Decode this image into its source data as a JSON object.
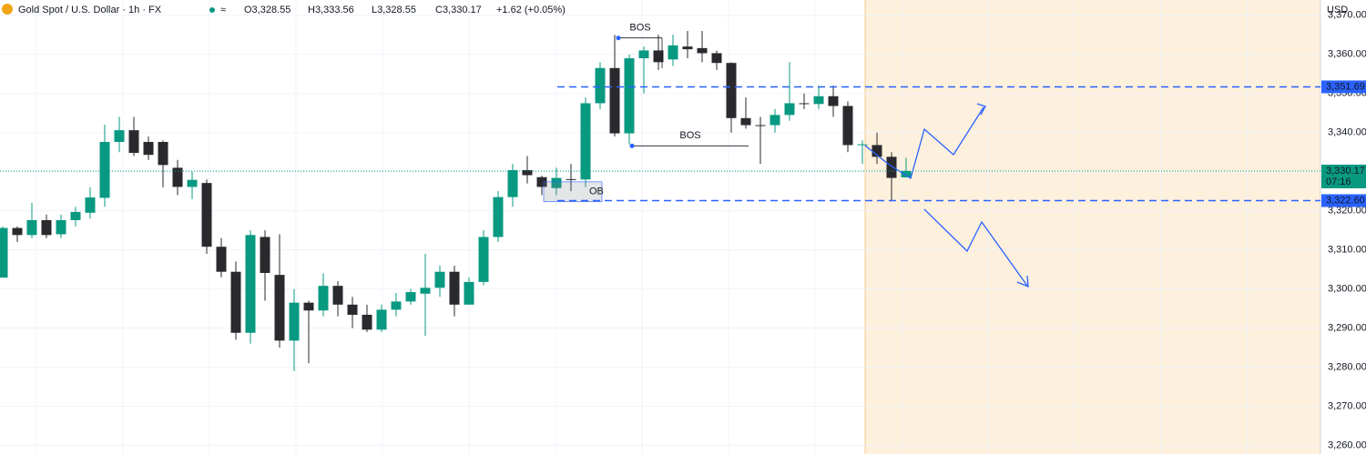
{
  "chart_data": {
    "type": "candlestick",
    "title": "Gold Spot / U.S. Dollar · 1h · FX",
    "ohlc_labels": [
      "O3,328.55",
      "H3,333.56",
      "L3,328.55",
      "C3,330.17"
    ],
    "change_label": "+1.62 (+0.05%)",
    "currency": "USD",
    "up_color": "#089981",
    "down_color": "#2a2a2e",
    "ylim": [
      3257.8,
      3373.9
    ],
    "yticks": [
      {
        "value": 3260,
        "label": "3,260.00"
      },
      {
        "value": 3270,
        "label": "3,270.00"
      },
      {
        "value": 3280,
        "label": "3,280.00"
      },
      {
        "value": 3290,
        "label": "3,290.00"
      },
      {
        "value": 3300,
        "label": "3,300.00"
      },
      {
        "value": 3310,
        "label": "3,310.00"
      },
      {
        "value": 3320,
        "label": "3,320.00"
      },
      {
        "value": 3330,
        "label": "3,330.00"
      },
      {
        "value": 3340,
        "label": "3,340.00"
      },
      {
        "value": 3350,
        "label": "3,350.00"
      },
      {
        "value": 3360,
        "label": "3,360.00"
      },
      {
        "value": 3370,
        "label": "3,370.00"
      }
    ],
    "series": [
      {
        "name": "open",
        "values": [
          3302.9,
          3315.6,
          3313.8,
          3317.6,
          3314,
          3317.6,
          3319.5,
          3323.3,
          3337.6,
          3340.6,
          3337.6,
          3337.6,
          3331,
          3326.1,
          3327.1,
          3310.8,
          3304.4,
          3288.8,
          3313.3,
          3303.6,
          3286.8,
          3296.5,
          3294.5,
          3300.8,
          3296,
          3293.4,
          3289.6,
          3294.7,
          3296.8,
          3298.8,
          3300.3,
          3304.4,
          3296,
          3301.8,
          3313.3,
          3323.5,
          3330.4,
          3328.6,
          3325.8,
          3328.1,
          3328,
          3347.5,
          3356.5,
          3339.8,
          3359,
          3361,
          3358.7,
          3362,
          3361.6,
          3360.3,
          3357.8,
          3343.7,
          3341.9,
          3341.9,
          3344.5,
          3347.5,
          3347.3,
          3349.3,
          3346.8,
          3336.8,
          3336.8,
          3333.8,
          3328.55
        ]
      },
      {
        "name": "high",
        "values": [
          3316,
          3316,
          3322,
          3319,
          3319,
          3321,
          3326,
          3342,
          3344,
          3344,
          3339,
          3338,
          3333,
          3330,
          3328,
          3313,
          3307,
          3315,
          3315,
          3314,
          3300,
          3297,
          3304,
          3302,
          3298,
          3296,
          3296,
          3299,
          3300,
          3309,
          3306,
          3306,
          3303,
          3315,
          3325,
          3332,
          3334,
          3329,
          3331,
          3332,
          3349,
          3358,
          3365,
          3360,
          3362,
          3365,
          3365,
          3366,
          3366,
          3361,
          3358,
          3349,
          3344,
          3346,
          3358,
          3350,
          3352,
          3352,
          3348,
          3338,
          3340,
          3335,
          3333.56
        ]
      },
      {
        "name": "low",
        "values": [
          3303,
          3312,
          3313,
          3313,
          3313,
          3316,
          3318,
          3321,
          3335,
          3334,
          3333,
          3326,
          3324,
          3323,
          3309,
          3303,
          3287,
          3286,
          3297,
          3285,
          3279,
          3281,
          3293,
          3293,
          3290,
          3289,
          3289,
          3293,
          3296,
          3288,
          3298,
          3293,
          3296,
          3301,
          3312,
          3321,
          3327,
          3324,
          3324,
          3325,
          3326,
          3346,
          3339,
          3337,
          3350,
          3356,
          3357,
          3359,
          3358,
          3356,
          3340,
          3341,
          3332,
          3340,
          3343,
          3346,
          3346,
          3344,
          3335,
          3332,
          3332,
          3322.6,
          3328.55
        ]
      },
      {
        "name": "close",
        "values": [
          3315.6,
          3313.8,
          3317.6,
          3313.8,
          3317.6,
          3319.7,
          3323.4,
          3337.6,
          3340.6,
          3334.8,
          3334.3,
          3331.7,
          3326.1,
          3327.9,
          3310.8,
          3304.4,
          3288.8,
          3313.8,
          3304.1,
          3286.8,
          3296.5,
          3294.5,
          3300.8,
          3296,
          3293.4,
          3289.6,
          3294.7,
          3296.8,
          3299.2,
          3300.3,
          3304.4,
          3296,
          3301.8,
          3313.3,
          3323.5,
          3330.4,
          3329.1,
          3326.1,
          3328.4,
          3327.9,
          3347.5,
          3356.5,
          3339.8,
          3359,
          3361,
          3358,
          3362.3,
          3361.3,
          3360.3,
          3357.8,
          3343.7,
          3341.9,
          3341.7,
          3344.5,
          3347.5,
          3347.3,
          3349.3,
          3346.8,
          3336.8,
          3337,
          3333.8,
          3328.4,
          3330.17
        ]
      }
    ],
    "levels": [
      {
        "value": 3351.69,
        "label": "3,351.69"
      },
      {
        "value": 3322.6,
        "label": "3,322.60"
      }
    ],
    "last_price": {
      "value": 3330.17,
      "label": "3,330.17",
      "countdown": "07:16"
    },
    "annotations": [
      {
        "text": "BOS",
        "level": 3364.2
      },
      {
        "text": "BOS",
        "level": 3336.6
      }
    ],
    "order_block": {
      "text": "OB",
      "top": 3327.4,
      "bottom": 3322.3
    }
  }
}
